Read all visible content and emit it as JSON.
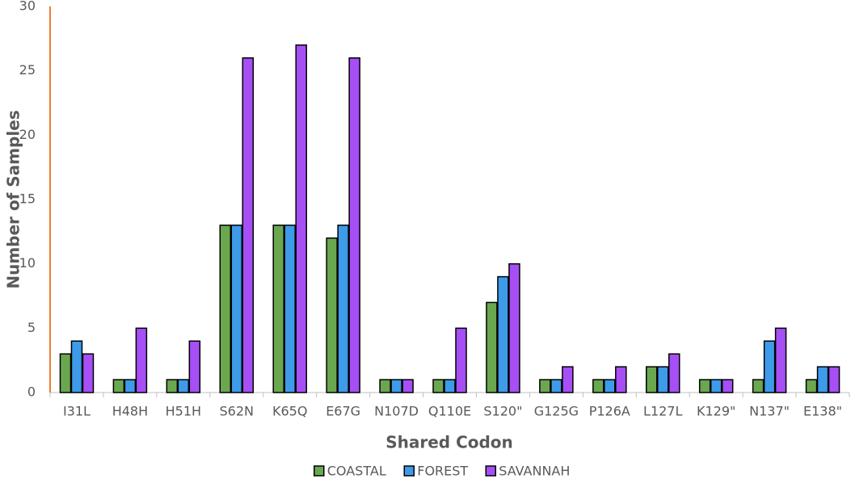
{
  "chart_data": {
    "type": "bar",
    "x_label": "Shared Codon",
    "y_label": "Number of Samples",
    "categories": [
      "I31L",
      "H48H",
      "H51H",
      "S62N",
      "K65Q",
      "E67G",
      "N107D",
      "Q110E",
      "S120\"",
      "G125G",
      "P126A",
      "L127L",
      "K129\"",
      "N137\"",
      "E138\""
    ],
    "series": [
      {
        "name": "COASTAL",
        "color": "#6aa84f",
        "values": [
          3,
          1,
          1,
          13,
          13,
          12,
          1,
          1,
          7,
          1,
          1,
          2,
          1,
          1,
          1
        ]
      },
      {
        "name": "FOREST",
        "color": "#3d9be9",
        "values": [
          4,
          1,
          1,
          13,
          13,
          13,
          1,
          1,
          9,
          1,
          1,
          2,
          1,
          4,
          2
        ]
      },
      {
        "name": "SAVANNAH",
        "color": "#a64ff5",
        "values": [
          3,
          5,
          4,
          26,
          27,
          26,
          1,
          5,
          10,
          2,
          2,
          3,
          1,
          5,
          2
        ]
      }
    ],
    "ylim": [
      0,
      30
    ],
    "yticks": [
      0,
      5,
      10,
      15,
      20,
      25,
      30
    ],
    "grid": false,
    "legend": "bottom"
  }
}
